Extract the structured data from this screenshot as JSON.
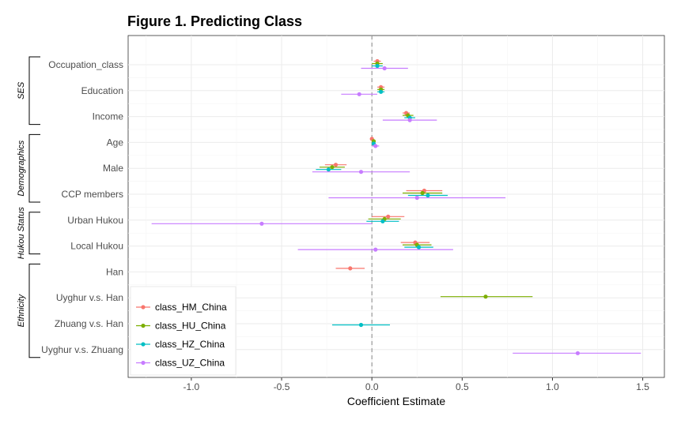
{
  "chart_data": {
    "type": "forest",
    "title": "Figure 1. Predicting Class",
    "xlabel": "Coefficient Estimate",
    "ylabel": "",
    "xlim": [
      -1.35,
      1.62
    ],
    "xticks": [
      -1.0,
      -0.5,
      0.0,
      0.5,
      1.0,
      1.5
    ],
    "xtick_labels": [
      "-1.0",
      "-0.5",
      "0.0",
      "0.5",
      "1.0",
      "1.5"
    ],
    "reference_line": 0,
    "grid": true,
    "legend_position": "bottom-left",
    "variables": [
      "Occupation_class",
      "Education",
      "Income",
      "Age",
      "Male",
      "CCP members",
      "Urban Hukou",
      "Local Hukou",
      "Han",
      "Uyghur v.s. Han",
      "Zhuang v.s. Han",
      "Uyghur v.s. Zhuang"
    ],
    "groups": [
      {
        "label": "SES",
        "from": 0,
        "to": 2
      },
      {
        "label": "Demographics",
        "from": 3,
        "to": 5
      },
      {
        "label": "Hukou Status",
        "from": 6,
        "to": 7
      },
      {
        "label": "Ethnicity",
        "from": 8,
        "to": 11
      }
    ],
    "series": [
      {
        "name": "class_HM_China",
        "color": "#F8766D",
        "estimates": [
          0.03,
          0.05,
          0.19,
          0.0,
          -0.2,
          0.29,
          0.09,
          0.24,
          -0.12,
          null,
          null,
          null
        ],
        "lower": [
          0.01,
          0.03,
          0.17,
          -0.01,
          -0.26,
          0.19,
          0.0,
          0.16,
          -0.2,
          null,
          null,
          null
        ],
        "upper": [
          0.05,
          0.07,
          0.21,
          0.01,
          -0.14,
          0.39,
          0.18,
          0.32,
          -0.04,
          null,
          null,
          null
        ]
      },
      {
        "name": "class_HU_China",
        "color": "#7CAE00",
        "estimates": [
          0.03,
          0.05,
          0.2,
          0.01,
          -0.22,
          0.28,
          0.07,
          0.25,
          null,
          0.63,
          null,
          null
        ],
        "lower": [
          0.0,
          0.03,
          0.17,
          0.0,
          -0.29,
          0.17,
          -0.02,
          0.17,
          null,
          0.38,
          null,
          null
        ],
        "upper": [
          0.06,
          0.07,
          0.23,
          0.02,
          -0.15,
          0.39,
          0.16,
          0.33,
          null,
          0.89,
          null,
          null
        ]
      },
      {
        "name": "class_HZ_China",
        "color": "#00BFC4",
        "estimates": [
          0.03,
          0.05,
          0.21,
          0.01,
          -0.24,
          0.31,
          0.06,
          0.26,
          null,
          null,
          -0.06,
          null
        ],
        "lower": [
          0.0,
          0.03,
          0.18,
          0.0,
          -0.31,
          0.2,
          -0.03,
          0.18,
          null,
          null,
          -0.22,
          null
        ],
        "upper": [
          0.06,
          0.07,
          0.24,
          0.02,
          -0.17,
          0.42,
          0.15,
          0.34,
          null,
          null,
          0.1,
          null
        ]
      },
      {
        "name": "class_UZ_China",
        "color": "#C77CFF",
        "estimates": [
          0.07,
          -0.07,
          0.21,
          0.02,
          -0.06,
          0.25,
          -0.61,
          0.02,
          null,
          null,
          null,
          1.14
        ],
        "lower": [
          -0.06,
          -0.17,
          0.06,
          0.0,
          -0.33,
          -0.24,
          -1.22,
          -0.41,
          null,
          null,
          null,
          0.78
        ],
        "upper": [
          0.2,
          0.03,
          0.36,
          0.04,
          0.21,
          0.74,
          0.0,
          0.45,
          null,
          null,
          null,
          1.49
        ]
      }
    ]
  }
}
